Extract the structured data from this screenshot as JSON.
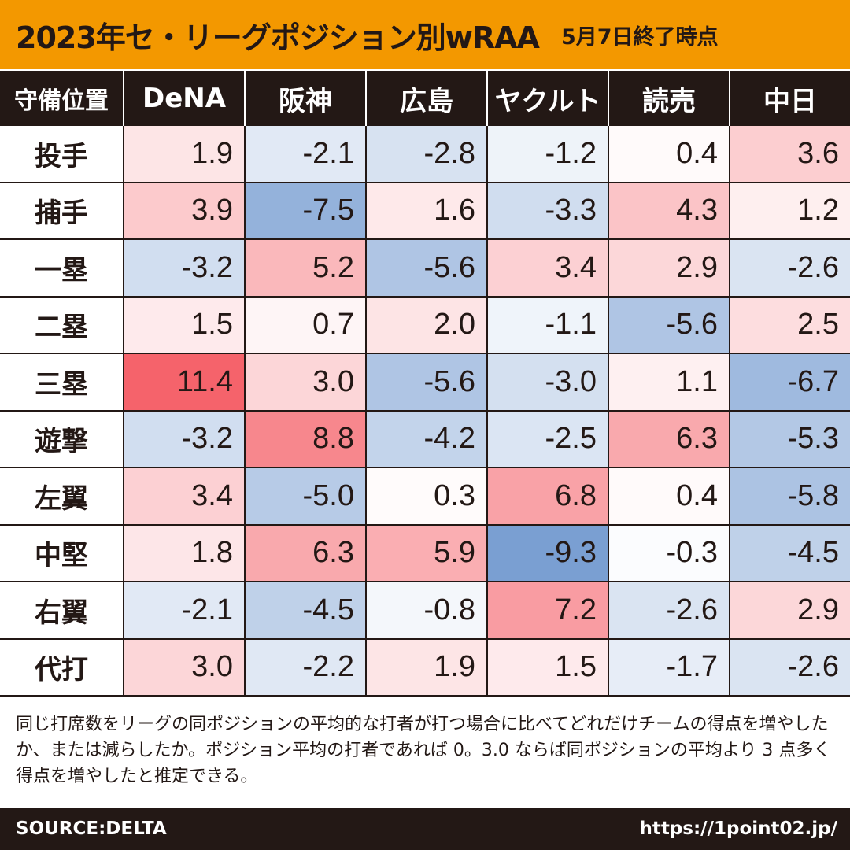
{
  "title": {
    "main": "2023年セ・リーグポジション別wRAA",
    "date": "5月7日終了時点"
  },
  "table": {
    "corner_label": "守備位置"
  },
  "chart_data": {
    "type": "heatmap",
    "columns": [
      "DeNA",
      "阪神",
      "広島",
      "ヤクルト",
      "読売",
      "中日"
    ],
    "rows": [
      "投手",
      "捕手",
      "一塁",
      "二塁",
      "三塁",
      "遊撃",
      "左翼",
      "中堅",
      "右翼",
      "代打"
    ],
    "values": [
      [
        1.9,
        -2.1,
        -2.8,
        -1.2,
        0.4,
        3.6
      ],
      [
        3.9,
        -7.5,
        1.6,
        -3.3,
        4.3,
        1.2
      ],
      [
        -3.2,
        5.2,
        -5.6,
        3.4,
        2.9,
        -2.6
      ],
      [
        1.5,
        0.7,
        2.0,
        -1.1,
        -5.6,
        2.5
      ],
      [
        11.4,
        3.0,
        -5.6,
        -3.0,
        1.1,
        -6.7
      ],
      [
        -3.2,
        8.8,
        -4.2,
        -2.5,
        6.3,
        -5.3
      ],
      [
        3.4,
        -5.0,
        0.3,
        6.8,
        0.4,
        -5.8
      ],
      [
        1.8,
        6.3,
        5.9,
        -9.3,
        -0.3,
        -4.5
      ],
      [
        -2.1,
        -4.5,
        -0.8,
        7.2,
        -2.6,
        2.9
      ],
      [
        3.0,
        -2.2,
        1.9,
        1.5,
        -1.7,
        -2.6
      ]
    ],
    "color_scale": {
      "negative": "#7a9fd2",
      "neutral": "#ffffff",
      "positive": "#f5636b",
      "neg_extreme": -9.3,
      "pos_extreme": 11.4
    }
  },
  "note": {
    "text": "同じ打席数をリーグの同ポジションの平均的な打者が打つ場合に比べてどれだけチームの得点を増やしたか、または減らしたか。ポジション平均の打者であれば 0。3.0 ならば同ポジションの平均より 3 点多く得点を増やしたと推定できる。"
  },
  "footer": {
    "source": "SOURCE:DELTA",
    "url": "https://1point02.jp/"
  },
  "colors": {
    "title_bg": "#f39800",
    "header_bg": "#231815",
    "footer_bg": "#231815"
  }
}
